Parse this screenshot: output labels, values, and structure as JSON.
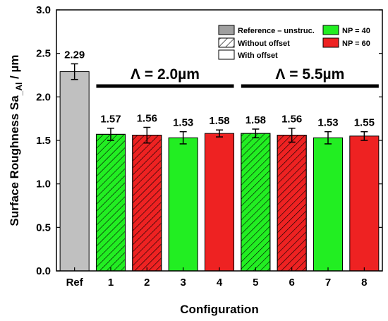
{
  "chart_data": {
    "type": "bar",
    "xlabel": "Configuration",
    "ylabel_main": "Surface Roughness Sa",
    "ylabel_sub": "_Al",
    "ylabel_unit": " / µm",
    "ylim": [
      0,
      3.0
    ],
    "yticks": [
      0.0,
      0.5,
      1.0,
      1.5,
      2.0,
      2.5,
      3.0
    ],
    "ytick_labels": [
      "0.0",
      "0.5",
      "1.0",
      "1.5",
      "2.0",
      "2.5",
      "3.0"
    ],
    "categories": [
      "Ref",
      "1",
      "2",
      "3",
      "4",
      "5",
      "6",
      "7",
      "8"
    ],
    "values": [
      2.29,
      1.57,
      1.56,
      1.53,
      1.58,
      1.58,
      1.56,
      1.53,
      1.55
    ],
    "value_labels": [
      "2.29",
      "1.57",
      "1.56",
      "1.53",
      "1.58",
      "1.58",
      "1.56",
      "1.53",
      "1.55"
    ],
    "errors": [
      0.09,
      0.07,
      0.09,
      0.07,
      0.04,
      0.05,
      0.08,
      0.07,
      0.05
    ],
    "bar_styles": [
      {
        "color": "#c0c0c0",
        "hatched": false
      },
      {
        "color": "#22ee22",
        "hatched": true
      },
      {
        "color": "#ee2222",
        "hatched": true
      },
      {
        "color": "#22ee22",
        "hatched": false
      },
      {
        "color": "#ee2222",
        "hatched": false
      },
      {
        "color": "#22ee22",
        "hatched": true
      },
      {
        "color": "#ee2222",
        "hatched": true
      },
      {
        "color": "#22ee22",
        "hatched": false
      },
      {
        "color": "#ee2222",
        "hatched": false
      }
    ],
    "group_annotations": [
      {
        "text": "Λ = 2.0µm",
        "from_index": 1,
        "to_index": 4
      },
      {
        "text": "Λ = 5.5µm",
        "from_index": 5,
        "to_index": 8
      }
    ],
    "legend": [
      {
        "label": "Reference – unstruc.",
        "color": "#a0a0a0",
        "pattern": "solid"
      },
      {
        "label": "Without offset",
        "color": "#ffffff",
        "pattern": "hatch"
      },
      {
        "label": "With offset",
        "color": "#ffffff",
        "pattern": "solid"
      },
      {
        "label": "NP = 40",
        "color": "#22ee22",
        "pattern": "solid"
      },
      {
        "label": "NP = 60",
        "color": "#ee2222",
        "pattern": "solid"
      }
    ],
    "legend_position": "top-right",
    "grid": false
  }
}
